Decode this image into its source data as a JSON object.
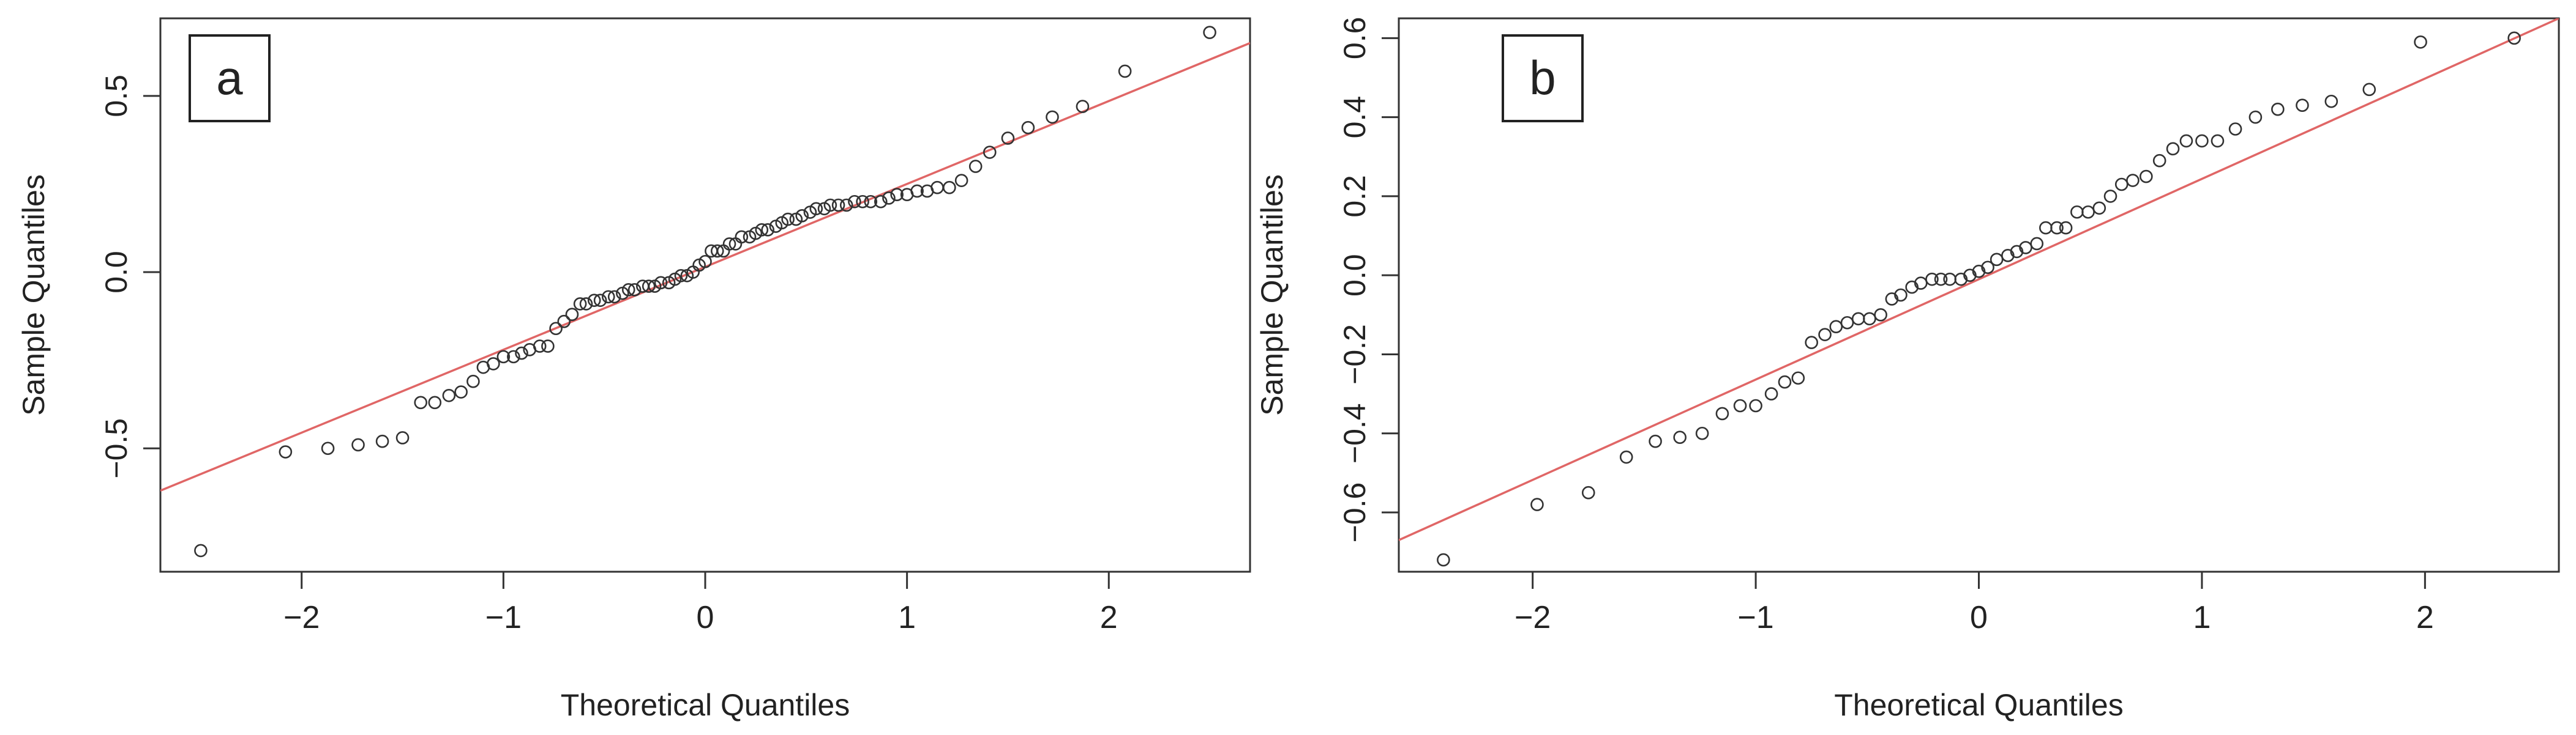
{
  "chart_data": [
    {
      "type": "scatter",
      "panel_label": "a",
      "xlabel": "Theoretical Quantiles",
      "ylabel": "Sample Quantiles",
      "xlim": [
        -2.7,
        2.7
      ],
      "ylim": [
        -0.85,
        0.72
      ],
      "x_ticks": [
        -2,
        -1,
        0,
        1,
        2
      ],
      "x_tick_labels": [
        "−2",
        "−1",
        "0",
        "1",
        "2"
      ],
      "y_ticks": [
        -0.5,
        0.0,
        0.5
      ],
      "y_tick_labels": [
        "−0.5",
        "0.0",
        "0.5"
      ],
      "grid": false,
      "colors": {
        "points": "#333333",
        "line": "#e06666"
      },
      "reference_line": [
        {
          "x": -2.7,
          "y": -0.62
        },
        {
          "x": 2.7,
          "y": 0.65
        }
      ],
      "series": [
        {
          "x": [
            -2.5,
            -2.08,
            -1.87,
            -1.72,
            -1.6,
            -1.5,
            -1.41,
            -1.34,
            -1.27,
            -1.21,
            -1.15,
            -1.1,
            -1.05,
            -1.0,
            -0.95,
            -0.91,
            -0.87,
            -0.82,
            -0.78,
            -0.74,
            -0.7,
            -0.66,
            -0.62,
            -0.59,
            -0.55,
            -0.52,
            -0.48,
            -0.45,
            -0.41,
            -0.38,
            -0.35,
            -0.31,
            -0.28,
            -0.25,
            -0.22,
            -0.18,
            -0.15,
            -0.12,
            -0.09,
            -0.06,
            -0.03,
            0.0,
            0.03,
            0.06,
            0.09,
            0.12,
            0.15,
            0.18,
            0.22,
            0.25,
            0.28,
            0.31,
            0.35,
            0.38,
            0.41,
            0.45,
            0.48,
            0.52,
            0.55,
            0.59,
            0.62,
            0.66,
            0.7,
            0.74,
            0.78,
            0.82,
            0.87,
            0.91,
            0.95,
            1.0,
            1.05,
            1.1,
            1.15,
            1.21,
            1.27,
            1.34,
            1.41,
            1.5,
            1.6,
            1.72,
            1.87,
            2.08,
            2.5
          ],
          "y": [
            -0.79,
            -0.51,
            -0.5,
            -0.49,
            -0.48,
            -0.47,
            -0.37,
            -0.37,
            -0.35,
            -0.34,
            -0.31,
            -0.27,
            -0.26,
            -0.24,
            -0.24,
            -0.23,
            -0.22,
            -0.21,
            -0.21,
            -0.16,
            -0.14,
            -0.12,
            -0.09,
            -0.09,
            -0.08,
            -0.08,
            -0.07,
            -0.07,
            -0.06,
            -0.05,
            -0.05,
            -0.04,
            -0.04,
            -0.04,
            -0.03,
            -0.03,
            -0.02,
            -0.01,
            -0.01,
            0.0,
            0.02,
            0.03,
            0.06,
            0.06,
            0.06,
            0.08,
            0.08,
            0.1,
            0.1,
            0.11,
            0.12,
            0.12,
            0.13,
            0.14,
            0.15,
            0.15,
            0.16,
            0.17,
            0.18,
            0.18,
            0.19,
            0.19,
            0.19,
            0.2,
            0.2,
            0.2,
            0.2,
            0.21,
            0.22,
            0.22,
            0.23,
            0.23,
            0.24,
            0.24,
            0.26,
            0.3,
            0.34,
            0.38,
            0.41,
            0.44,
            0.47,
            0.57,
            0.68
          ]
        }
      ]
    },
    {
      "type": "scatter",
      "panel_label": "b",
      "xlabel": "Theoretical Quantiles",
      "ylabel": "Sample Quantiles",
      "xlim": [
        -2.6,
        2.6
      ],
      "ylim": [
        -0.75,
        0.65
      ],
      "x_ticks": [
        -2,
        -1,
        0,
        1,
        2
      ],
      "x_tick_labels": [
        "−2",
        "−1",
        "0",
        "1",
        "2"
      ],
      "y_ticks": [
        -0.6,
        -0.4,
        -0.2,
        0.0,
        0.2,
        0.4,
        0.6
      ],
      "y_tick_labels": [
        "−0.6",
        "−0.4",
        "−0.2",
        "0.0",
        "0.2",
        "0.4",
        "0.6"
      ],
      "grid": false,
      "colors": {
        "points": "#333333",
        "line": "#e06666"
      },
      "reference_line": [
        {
          "x": -2.6,
          "y": -0.67
        },
        {
          "x": 2.6,
          "y": 0.65
        }
      ],
      "series": [
        {
          "x": [
            -2.4,
            -1.98,
            -1.75,
            -1.58,
            -1.45,
            -1.34,
            -1.24,
            -1.15,
            -1.07,
            -1.0,
            -0.93,
            -0.87,
            -0.81,
            -0.75,
            -0.69,
            -0.64,
            -0.59,
            -0.54,
            -0.49,
            -0.44,
            -0.39,
            -0.35,
            -0.3,
            -0.26,
            -0.21,
            -0.17,
            -0.13,
            -0.08,
            -0.04,
            0.0,
            0.04,
            0.08,
            0.13,
            0.17,
            0.21,
            0.26,
            0.3,
            0.35,
            0.39,
            0.44,
            0.49,
            0.54,
            0.59,
            0.64,
            0.69,
            0.75,
            0.81,
            0.87,
            0.93,
            1.0,
            1.07,
            1.15,
            1.24,
            1.34,
            1.45,
            1.58,
            1.75,
            1.98,
            2.4
          ],
          "y": [
            -0.72,
            -0.58,
            -0.55,
            -0.46,
            -0.42,
            -0.41,
            -0.4,
            -0.35,
            -0.33,
            -0.33,
            -0.3,
            -0.27,
            -0.26,
            -0.17,
            -0.15,
            -0.13,
            -0.12,
            -0.11,
            -0.11,
            -0.1,
            -0.06,
            -0.05,
            -0.03,
            -0.02,
            -0.01,
            -0.01,
            -0.01,
            -0.01,
            0.0,
            0.01,
            0.02,
            0.04,
            0.05,
            0.06,
            0.07,
            0.08,
            0.12,
            0.12,
            0.12,
            0.16,
            0.16,
            0.17,
            0.2,
            0.23,
            0.24,
            0.25,
            0.29,
            0.32,
            0.34,
            0.34,
            0.34,
            0.37,
            0.4,
            0.42,
            0.43,
            0.44,
            0.47,
            0.59,
            0.6
          ]
        }
      ]
    }
  ]
}
